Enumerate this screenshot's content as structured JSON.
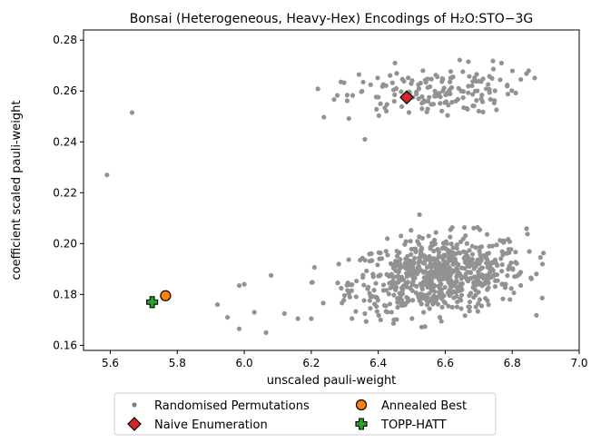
{
  "chart_data": {
    "type": "scatter",
    "title": "Bonsai (Heterogeneous, Heavy-Hex) Encodings of H₂O:STO−3G",
    "xlabel": "unscaled pauli-weight",
    "ylabel": "coefficient scaled pauli-weight",
    "xlim": [
      5.52,
      7.0
    ],
    "ylim": [
      0.158,
      0.284
    ],
    "xticks": [
      "5.6",
      "5.8",
      "6.0",
      "6.2",
      "6.4",
      "6.6",
      "6.8",
      "7.0"
    ],
    "yticks": [
      "0.16",
      "0.18",
      "0.20",
      "0.22",
      "0.24",
      "0.26",
      "0.28"
    ],
    "grid": false,
    "legend_position": "bottom-outside",
    "legend_columns": 2,
    "series": [
      {
        "name": "Randomised Permutations",
        "marker": "circle",
        "color": "#808080",
        "outlier_points": [
          {
            "x": 5.59,
            "y": 0.227
          },
          {
            "x": 5.665,
            "y": 0.2515
          },
          {
            "x": 5.92,
            "y": 0.176
          },
          {
            "x": 5.95,
            "y": 0.171
          },
          {
            "x": 5.985,
            "y": 0.1835
          },
          {
            "x": 6.0,
            "y": 0.184
          },
          {
            "x": 5.985,
            "y": 0.1665
          },
          {
            "x": 6.03,
            "y": 0.173
          },
          {
            "x": 6.065,
            "y": 0.165
          },
          {
            "x": 6.08,
            "y": 0.1875
          },
          {
            "x": 6.12,
            "y": 0.1725
          },
          {
            "x": 6.16,
            "y": 0.1705
          },
          {
            "x": 6.2,
            "y": 0.1705
          },
          {
            "x": 6.36,
            "y": 0.241
          },
          {
            "x": 6.355,
            "y": 0.2635
          },
          {
            "x": 6.45,
            "y": 0.271
          }
        ],
        "clusters": [
          {
            "count": 700,
            "center_x": 6.58,
            "center_y": 0.1875,
            "spread_x": 0.13,
            "spread_y": 0.0075,
            "x_range": [
              6.2,
              6.93
            ],
            "y_range": [
              0.166,
              0.22
            ]
          },
          {
            "count": 165,
            "center_x": 6.56,
            "center_y": 0.2595,
            "spread_x": 0.13,
            "spread_y": 0.005,
            "x_range": [
              6.2,
              6.9
            ],
            "y_range": [
              0.248,
              0.277
            ]
          }
        ]
      },
      {
        "name": "Naive Enumeration",
        "marker": "diamond",
        "color": "#d62728",
        "points": [
          {
            "x": 6.485,
            "y": 0.2575
          }
        ]
      },
      {
        "name": "Annealed Best",
        "marker": "circle-large",
        "color": "#ff7f0e",
        "points": [
          {
            "x": 5.765,
            "y": 0.1795
          }
        ]
      },
      {
        "name": "TOPP-HATT",
        "marker": "plus",
        "color": "#2ca02c",
        "points": [
          {
            "x": 5.725,
            "y": 0.177
          }
        ]
      }
    ]
  }
}
